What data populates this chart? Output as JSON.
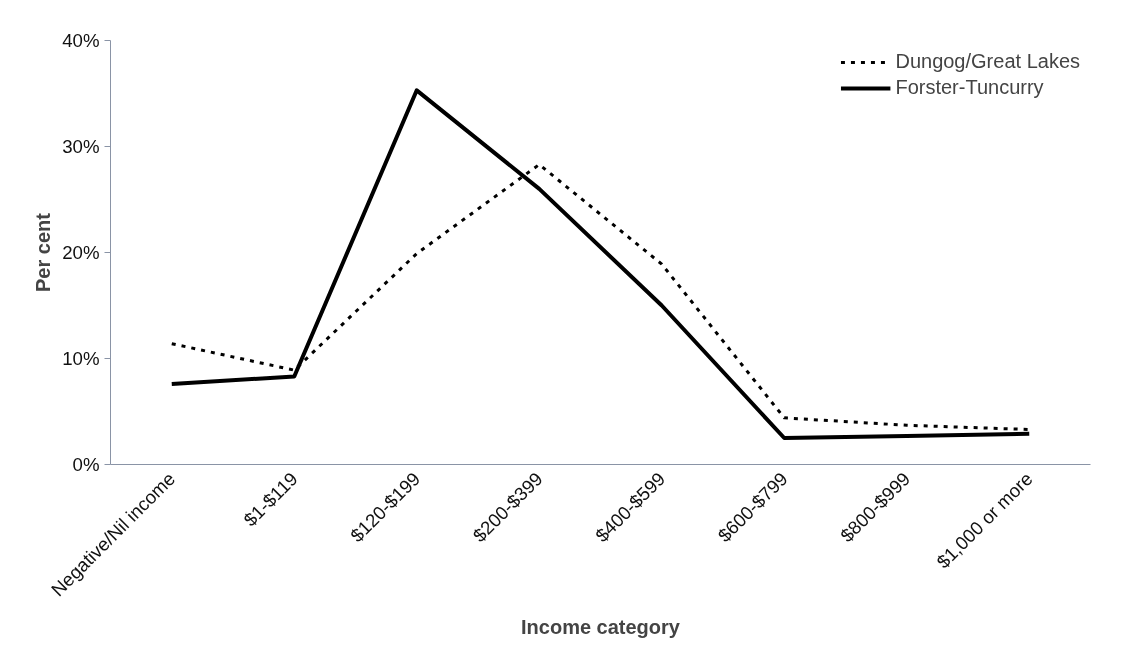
{
  "chart_data": {
    "type": "line",
    "xlabel": "Income category",
    "ylabel": "Per cent",
    "categories": [
      "Negative/Nil income",
      "$1-$119",
      "$120-$199",
      "$200-$399",
      "$400-$599",
      "$600-$799",
      "$800-$999",
      "$1,000 or more"
    ],
    "series": [
      {
        "name": "Dungog/Great Lakes",
        "color": "#000000",
        "line_style": "dashed",
        "values": [
          11.4,
          8.9,
          19.9,
          28.3,
          18.9,
          4.4,
          3.7,
          3.3
        ]
      },
      {
        "name": "Forster-Tuncurry",
        "color": "#000000",
        "line_style": "solid",
        "values": [
          7.6,
          8.3,
          35.3,
          26.0,
          15.0,
          2.5,
          2.7,
          2.9
        ]
      }
    ],
    "ylim": [
      0,
      40
    ],
    "yticks": [
      {
        "value": 0,
        "label": "0%"
      },
      {
        "value": 10,
        "label": "10%"
      },
      {
        "value": 20,
        "label": "20%"
      },
      {
        "value": 30,
        "label": "30%"
      },
      {
        "value": 40,
        "label": "40%"
      }
    ],
    "grid": false,
    "legend": "top right",
    "marker": "none"
  }
}
